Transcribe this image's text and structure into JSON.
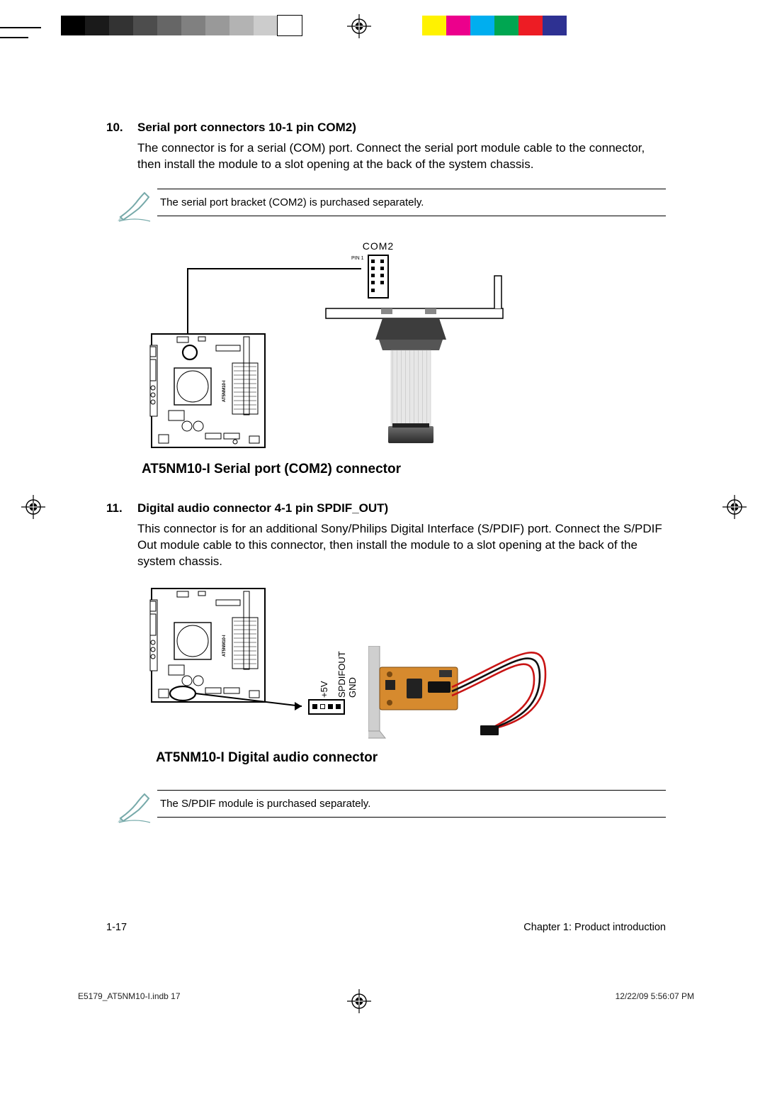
{
  "print_marks": {
    "gray_swatches": [
      "#000000",
      "#1a1a1a",
      "#333333",
      "#4d4d4d",
      "#666666",
      "#808080",
      "#999999",
      "#b3b3b3",
      "#cccccc",
      "#ffffff"
    ],
    "color_swatches": [
      "#fff200",
      "#ec008c",
      "#00aeef",
      "#00a651",
      "#ed1c24",
      "#2e3192"
    ]
  },
  "section10": {
    "number": "10.",
    "title": "Serial port connectors 10-1 pin COM2)",
    "body": "The connector is for a serial (COM) port. Connect the serial port module cable to the connector, then install the module to a slot opening at the back of the system chassis.",
    "note": "The serial port bracket (COM2) is purchased separately.",
    "header_label": "COM2",
    "pin1_label": "PIN 1",
    "board_label": "AT5NM10-I",
    "figure_caption": "AT5NM10-I Serial port (COM2) connector"
  },
  "section11": {
    "number": "11.",
    "title": "Digital audio connector 4-1 pin SPDIF_OUT)",
    "body": "This connector is for an additional Sony/Philips Digital Interface (S/PDIF) port. Connect the S/PDIF Out module cable to this connector, then install the module to a slot opening at the back of the system chassis.",
    "pin_labels": {
      "p1": "+5V",
      "p2": "SPDIFOUT",
      "p3": "GND"
    },
    "board_label": "AT5NM10-I",
    "figure_caption": "AT5NM10-I Digital audio connector",
    "note": "The S/PDIF module is purchased separately."
  },
  "footer": {
    "page_num": "1-17",
    "chapter": "Chapter 1: Product introduction",
    "file": "E5179_AT5NM10-I.indb   17",
    "timestamp": "12/22/09   5:56:07 PM"
  },
  "styling": {
    "diagram_stroke": "#000000",
    "ribbon_fill": "#e7e7e7",
    "ribbon_stripe": "#cfcfcf",
    "connector_dark": "#3d3d3d",
    "connector_mid": "#6f6f6f",
    "pcb_color": "#d68a2e",
    "pcb_dark": "#7a4a12",
    "wire_red": "#c81414",
    "wire_black": "#111111",
    "bracket_silver": "#cfcfcf"
  }
}
